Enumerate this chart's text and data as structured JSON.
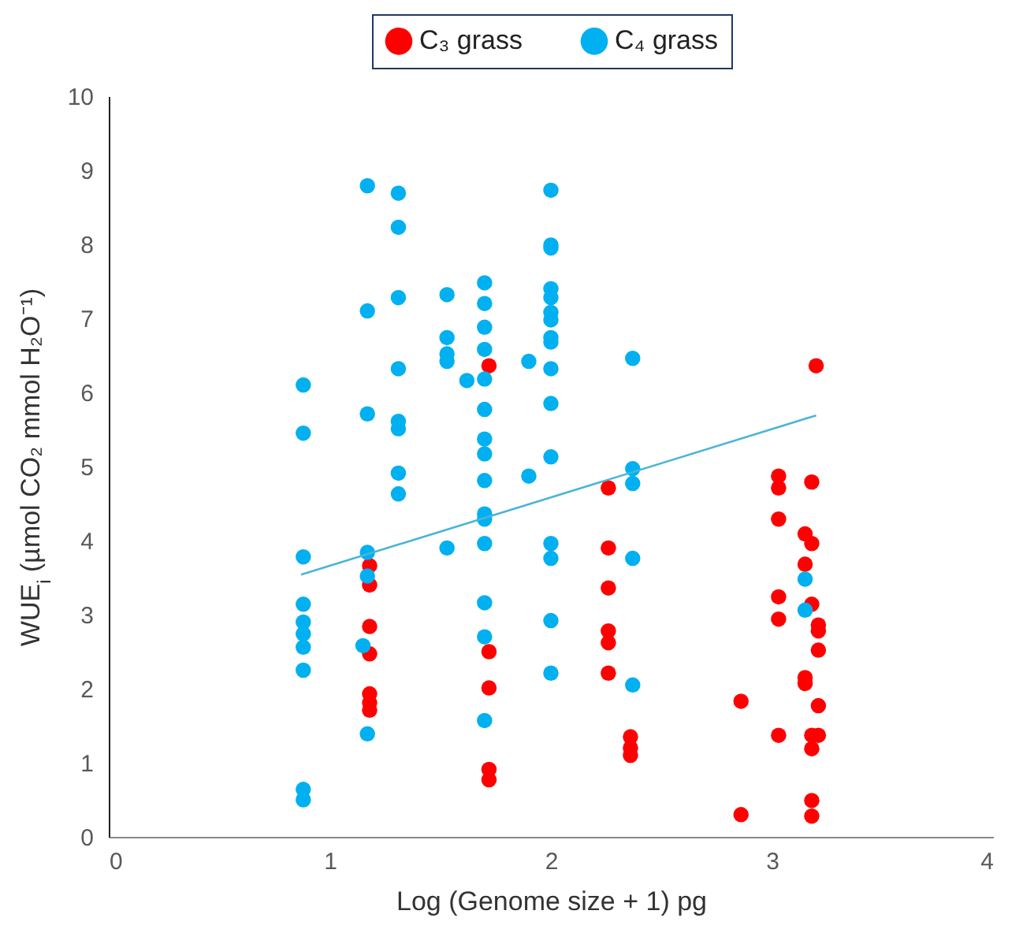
{
  "chart_data": {
    "type": "scatter",
    "xlabel": "Log (Genome size + 1) pg",
    "ylabel": "WUE$_{i}$ (µmol CO₂ mmol H₂O⁻¹)",
    "xlim": [
      0,
      4
    ],
    "xticks": [
      0,
      1,
      2,
      3,
      4
    ],
    "ylim": [
      0,
      10
    ],
    "yticks": [
      0,
      1,
      2,
      3,
      4,
      5,
      6,
      7,
      8,
      9,
      10
    ],
    "grid": false,
    "legend": "top",
    "marker": "circle",
    "series": [
      {
        "name": "C₃ grass",
        "color": "#ff0000",
        "x": [
          1.18,
          1.18,
          1.18,
          1.18,
          1.18,
          1.18,
          1.18,
          1.72,
          1.72,
          1.72,
          1.72,
          1.72,
          2.26,
          2.26,
          2.26,
          2.26,
          2.26,
          2.26,
          2.36,
          2.36,
          2.36,
          2.86,
          2.86,
          3.03,
          3.03,
          3.18,
          3.03,
          3.15,
          3.18,
          3.15,
          3.03,
          3.18,
          3.03,
          3.21,
          3.21,
          3.21,
          3.15,
          3.15,
          3.21,
          3.03,
          3.18,
          3.21,
          3.18,
          3.18,
          3.18,
          3.2
        ],
        "values": [
          3.66,
          3.4,
          2.84,
          2.47,
          1.93,
          1.81,
          1.71,
          6.36,
          2.5,
          2.01,
          0.91,
          0.77,
          4.71,
          3.9,
          3.36,
          2.78,
          2.62,
          2.21,
          1.35,
          1.2,
          1.1,
          1.83,
          0.3,
          4.87,
          4.71,
          4.79,
          4.29,
          4.09,
          3.96,
          3.68,
          3.24,
          3.14,
          2.94,
          2.86,
          2.78,
          2.52,
          2.15,
          2.07,
          1.77,
          1.37,
          1.37,
          1.37,
          1.19,
          0.49,
          0.28,
          6.36
        ]
      },
      {
        "name": "C₄ grass",
        "color": "#00b0f0",
        "x": [
          0.88,
          0.88,
          0.88,
          0.88,
          0.88,
          0.88,
          0.88,
          0.88,
          0.88,
          0.88,
          1.17,
          1.17,
          1.17,
          1.17,
          1.17,
          1.15,
          1.17,
          1.31,
          1.31,
          1.31,
          1.31,
          1.31,
          1.31,
          1.31,
          1.31,
          1.53,
          1.53,
          1.53,
          1.53,
          1.53,
          1.62,
          1.7,
          1.7,
          1.7,
          1.7,
          1.7,
          1.7,
          1.7,
          1.7,
          1.7,
          1.7,
          1.7,
          1.7,
          1.7,
          1.7,
          1.7,
          1.9,
          1.9,
          2.0,
          2.0,
          2.0,
          2.0,
          2.0,
          2.0,
          2.0,
          2.0,
          2.0,
          2.0,
          2.0,
          2.0,
          2.0,
          2.0,
          2.0,
          2.0,
          2.37,
          2.37,
          2.37,
          2.37,
          2.37,
          3.15,
          3.15
        ],
        "values": [
          6.1,
          5.45,
          3.78,
          3.14,
          2.9,
          2.74,
          2.56,
          2.25,
          0.64,
          0.5,
          8.79,
          7.1,
          5.71,
          3.84,
          3.52,
          2.58,
          1.39,
          8.69,
          8.23,
          7.28,
          6.32,
          5.61,
          5.51,
          4.91,
          4.63,
          7.32,
          6.74,
          6.52,
          6.42,
          3.9,
          6.16,
          7.48,
          7.2,
          6.88,
          6.58,
          6.18,
          5.77,
          5.37,
          5.17,
          4.81,
          4.36,
          4.29,
          3.96,
          3.16,
          2.7,
          1.57,
          6.42,
          4.87,
          8.73,
          7.99,
          7.95,
          7.4,
          7.28,
          7.08,
          6.98,
          6.74,
          6.68,
          6.32,
          5.85,
          5.13,
          3.96,
          3.76,
          2.92,
          2.21,
          6.46,
          4.97,
          4.77,
          3.76,
          2.05,
          3.48,
          3.06
        ]
      },
      {
        "type": "line",
        "color": "#4bb4d8",
        "marker": "none",
        "x": [
          0.87,
          3.2
        ],
        "values": [
          3.54,
          5.69
        ]
      }
    ]
  }
}
